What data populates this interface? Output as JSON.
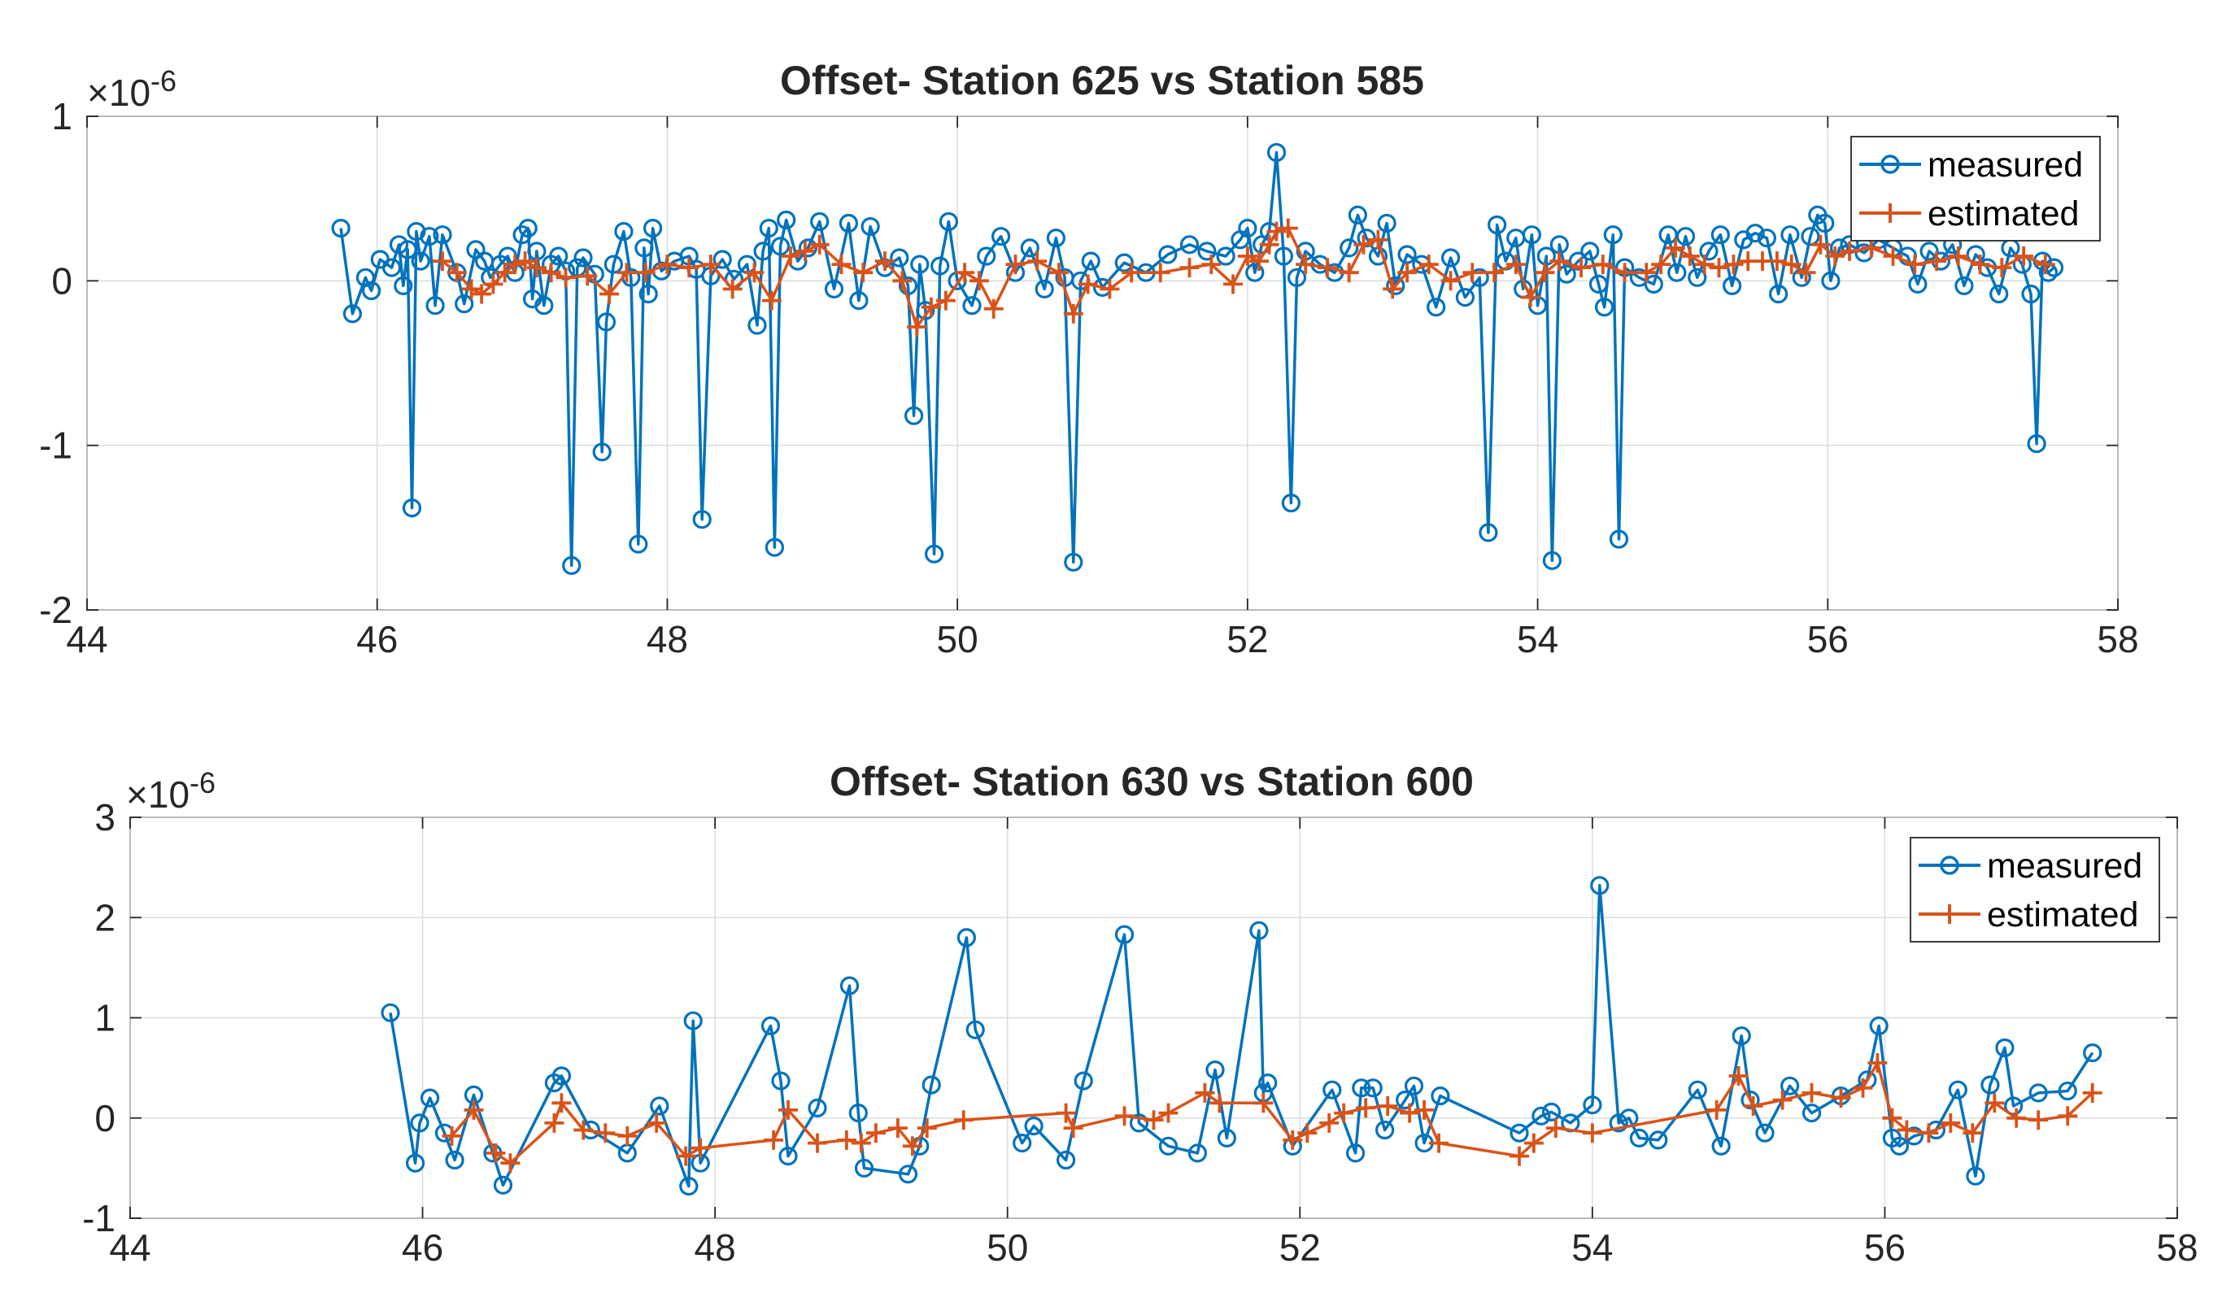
{
  "colors": {
    "measured": "#0072BD",
    "estimated": "#D95319"
  },
  "legend": {
    "placement": "top-right",
    "entries": [
      "measured",
      "estimated"
    ]
  },
  "chart_data": [
    {
      "type": "line",
      "title": "Offset- Station 625 vs Station 585",
      "exponent_label": "×10",
      "exponent_power": "-6",
      "xlim": [
        44,
        58
      ],
      "ylim": [
        -2,
        1
      ],
      "xticks": [
        "44",
        "46",
        "48",
        "50",
        "52",
        "54",
        "56",
        "58"
      ],
      "yticks": [
        "-2",
        "-1",
        "0",
        "1"
      ],
      "grid": true,
      "series": [
        {
          "name": "measured",
          "marker": "circle",
          "x": [
            45.75,
            45.83,
            45.92,
            45.96,
            46.02,
            46.1,
            46.15,
            46.18,
            46.21,
            46.24,
            46.27,
            46.3,
            46.36,
            46.4,
            46.45,
            46.55,
            46.6,
            46.68,
            46.74,
            46.78,
            46.85,
            46.9,
            46.95,
            47.0,
            47.04,
            47.07,
            47.1,
            47.15,
            47.2,
            47.25,
            47.3,
            47.34,
            47.38,
            47.42,
            47.5,
            47.55,
            47.58,
            47.63,
            47.7,
            47.75,
            47.8,
            47.84,
            47.87,
            47.9,
            47.96,
            48.05,
            48.15,
            48.2,
            48.24,
            48.3,
            48.38,
            48.46,
            48.55,
            48.62,
            48.66,
            48.7,
            48.74,
            48.78,
            48.82,
            48.9,
            48.97,
            49.05,
            49.15,
            49.25,
            49.32,
            49.4,
            49.5,
            49.6,
            49.66,
            49.7,
            49.74,
            49.78,
            49.84,
            49.88,
            49.94,
            50.0,
            50.1,
            50.2,
            50.3,
            50.4,
            50.5,
            50.6,
            50.68,
            50.74,
            50.8,
            50.85,
            50.92,
            51.0,
            51.15,
            51.3,
            51.45,
            51.6,
            51.72,
            51.85,
            51.95,
            52.0,
            52.05,
            52.1,
            52.15,
            52.2,
            52.25,
            52.3,
            52.34,
            52.4,
            52.5,
            52.6,
            52.7,
            52.76,
            52.82,
            52.9,
            52.96,
            53.02,
            53.1,
            53.2,
            53.3,
            53.4,
            53.5,
            53.6,
            53.66,
            53.72,
            53.78,
            53.85,
            53.9,
            53.96,
            54.0,
            54.06,
            54.1,
            54.15,
            54.2,
            54.28,
            54.36,
            54.42,
            54.46,
            54.52,
            54.56,
            54.6,
            54.7,
            54.8,
            54.9,
            54.96,
            55.02,
            55.1,
            55.18,
            55.26,
            55.34,
            55.42,
            55.5,
            55.58,
            55.66,
            55.74,
            55.82,
            55.88,
            55.93,
            55.98,
            56.02,
            56.08,
            56.15,
            56.25,
            56.35,
            56.45,
            56.55,
            56.62,
            56.7,
            56.78,
            56.86,
            56.94,
            57.02,
            57.1,
            57.18,
            57.26,
            57.34,
            57.4,
            57.44,
            57.48,
            57.52,
            57.56
          ],
          "y": [
            0.32,
            -0.2,
            0.02,
            -0.06,
            0.13,
            0.08,
            0.22,
            -0.03,
            0.19,
            -1.38,
            0.3,
            0.12,
            0.27,
            -0.15,
            0.28,
            0.05,
            -0.14,
            0.19,
            0.12,
            0.02,
            0.1,
            0.15,
            0.05,
            0.28,
            0.32,
            -0.11,
            0.18,
            -0.15,
            0.1,
            0.15,
            0.06,
            -1.73,
            0.08,
            0.14,
            0.04,
            -1.04,
            -0.25,
            0.1,
            0.3,
            0.02,
            -1.6,
            0.2,
            -0.08,
            0.32,
            0.06,
            0.12,
            0.15,
            0.07,
            -1.45,
            0.03,
            0.13,
            0.01,
            0.1,
            -0.27,
            0.18,
            0.32,
            -1.62,
            0.21,
            0.37,
            0.12,
            0.2,
            0.36,
            -0.05,
            0.35,
            -0.12,
            0.33,
            0.08,
            0.14,
            -0.03,
            -0.82,
            0.1,
            -0.18,
            -1.66,
            0.09,
            0.36,
            0.0,
            -0.15,
            0.15,
            0.27,
            0.05,
            0.2,
            -0.05,
            0.26,
            0.02,
            -1.71,
            0.0,
            0.12,
            -0.04,
            0.11,
            0.05,
            0.16,
            0.22,
            0.18,
            0.15,
            0.25,
            0.32,
            0.05,
            0.22,
            0.3,
            0.78,
            0.15,
            -1.35,
            0.02,
            0.18,
            0.1,
            0.05,
            0.2,
            0.4,
            0.26,
            0.15,
            0.35,
            -0.03,
            0.16,
            0.1,
            -0.16,
            0.14,
            -0.1,
            0.02,
            -1.53,
            0.34,
            0.12,
            0.26,
            -0.05,
            0.28,
            -0.15,
            0.15,
            -1.7,
            0.22,
            0.04,
            0.12,
            0.18,
            -0.02,
            -0.16,
            0.28,
            -1.57,
            0.08,
            0.02,
            -0.02,
            0.28,
            0.05,
            0.27,
            0.02,
            0.18,
            0.28,
            -0.03,
            0.25,
            0.29,
            0.26,
            -0.08,
            0.28,
            0.02,
            0.27,
            0.4,
            0.35,
            0.0,
            0.2,
            0.22,
            0.17,
            0.25,
            0.2,
            0.15,
            -0.02,
            0.18,
            0.12,
            0.22,
            -0.03,
            0.16,
            0.08,
            -0.08,
            0.2,
            0.1,
            -0.08,
            -0.99,
            0.12,
            0.05,
            0.08
          ]
        },
        {
          "name": "estimated",
          "marker": "plus",
          "x": [
            46.45,
            46.55,
            46.65,
            46.72,
            46.8,
            46.88,
            46.95,
            47.02,
            47.1,
            47.2,
            47.3,
            47.45,
            47.6,
            47.72,
            47.85,
            48.0,
            48.15,
            48.3,
            48.45,
            48.6,
            48.72,
            48.85,
            48.95,
            49.05,
            49.2,
            49.35,
            49.5,
            49.62,
            49.72,
            49.82,
            49.92,
            50.05,
            50.15,
            50.25,
            50.4,
            50.55,
            50.7,
            50.8,
            50.9,
            51.05,
            51.2,
            51.4,
            51.6,
            51.75,
            51.9,
            52.0,
            52.08,
            52.15,
            52.2,
            52.28,
            52.4,
            52.55,
            52.7,
            52.8,
            52.9,
            53.0,
            53.1,
            53.25,
            53.4,
            53.55,
            53.7,
            53.85,
            53.95,
            54.05,
            54.15,
            54.3,
            54.45,
            54.6,
            54.75,
            54.85,
            54.95,
            55.05,
            55.15,
            55.25,
            55.35,
            55.45,
            55.55,
            55.65,
            55.75,
            55.85,
            55.95,
            56.05,
            56.15,
            56.3,
            56.45,
            56.6,
            56.75,
            56.9,
            57.05,
            57.2,
            57.35,
            57.5
          ],
          "y": [
            0.12,
            0.05,
            -0.05,
            -0.08,
            -0.02,
            0.05,
            0.1,
            0.12,
            0.08,
            0.05,
            0.02,
            0.03,
            -0.08,
            0.05,
            0.05,
            0.1,
            0.08,
            0.1,
            -0.05,
            0.05,
            -0.12,
            0.15,
            0.18,
            0.22,
            0.1,
            0.05,
            0.12,
            0.0,
            -0.28,
            -0.16,
            -0.12,
            0.05,
            0.0,
            -0.17,
            0.1,
            0.12,
            0.05,
            -0.2,
            -0.02,
            -0.05,
            0.05,
            0.05,
            0.08,
            0.1,
            -0.02,
            0.15,
            0.12,
            0.22,
            0.3,
            0.32,
            0.1,
            0.08,
            0.05,
            0.22,
            0.25,
            -0.05,
            0.05,
            0.1,
            0.0,
            0.05,
            0.05,
            0.1,
            -0.1,
            0.05,
            0.12,
            0.08,
            0.1,
            0.05,
            0.05,
            0.1,
            0.2,
            0.15,
            0.1,
            0.08,
            0.1,
            0.12,
            0.12,
            0.12,
            0.1,
            0.05,
            0.22,
            0.15,
            0.18,
            0.2,
            0.15,
            0.1,
            0.12,
            0.15,
            0.1,
            0.08,
            0.15,
            0.1
          ]
        }
      ]
    },
    {
      "type": "line",
      "title": "Offset- Station 630 vs Station 600",
      "exponent_label": "×10",
      "exponent_power": "-6",
      "xlim": [
        44,
        58
      ],
      "ylim": [
        -1,
        3
      ],
      "xticks": [
        "44",
        "46",
        "48",
        "50",
        "52",
        "54",
        "56",
        "58"
      ],
      "yticks": [
        "-1",
        "0",
        "1",
        "2",
        "3"
      ],
      "grid": true,
      "series": [
        {
          "name": "measured",
          "marker": "circle",
          "x": [
            45.78,
            45.95,
            45.98,
            46.05,
            46.15,
            46.22,
            46.35,
            46.48,
            46.55,
            46.9,
            46.95,
            47.15,
            47.4,
            47.62,
            47.82,
            47.85,
            47.9,
            48.38,
            48.45,
            48.5,
            48.7,
            48.92,
            48.98,
            49.02,
            49.32,
            49.4,
            49.48,
            49.72,
            49.78,
            50.1,
            50.18,
            50.4,
            50.52,
            50.8,
            50.9,
            51.1,
            51.3,
            51.42,
            51.5,
            51.72,
            51.75,
            51.78,
            51.95,
            52.22,
            52.38,
            52.42,
            52.5,
            52.58,
            52.72,
            52.78,
            52.85,
            52.96,
            53.5,
            53.65,
            53.72,
            53.85,
            54.0,
            54.05,
            54.18,
            54.25,
            54.32,
            54.45,
            54.72,
            54.88,
            55.02,
            55.08,
            55.18,
            55.35,
            55.5,
            55.7,
            55.88,
            55.96,
            56.05,
            56.1,
            56.2,
            56.35,
            56.5,
            56.62,
            56.72,
            56.82,
            56.88,
            57.05,
            57.25,
            57.42
          ],
          "y": [
            1.05,
            -0.45,
            -0.05,
            0.2,
            -0.15,
            -0.42,
            0.23,
            -0.35,
            -0.67,
            0.35,
            0.42,
            -0.12,
            -0.35,
            0.12,
            -0.68,
            0.97,
            -0.45,
            0.92,
            0.37,
            -0.38,
            0.1,
            1.32,
            0.05,
            -0.5,
            -0.56,
            -0.28,
            0.33,
            1.8,
            0.88,
            -0.25,
            -0.08,
            -0.42,
            0.37,
            1.83,
            -0.05,
            -0.28,
            -0.35,
            0.48,
            -0.2,
            1.87,
            0.25,
            0.35,
            -0.28,
            0.28,
            -0.35,
            0.3,
            0.3,
            -0.12,
            0.18,
            0.32,
            -0.25,
            0.22,
            -0.15,
            0.02,
            0.06,
            -0.05,
            0.13,
            2.32,
            -0.05,
            0.0,
            -0.2,
            -0.22,
            0.28,
            -0.28,
            0.82,
            0.18,
            -0.15,
            0.32,
            0.05,
            0.22,
            0.38,
            0.92,
            -0.2,
            -0.28,
            -0.18,
            -0.12,
            0.28,
            -0.58,
            0.33,
            0.7,
            0.12,
            0.25,
            0.27,
            0.65
          ]
        },
        {
          "name": "estimated",
          "marker": "plus",
          "x": [
            46.2,
            46.35,
            46.5,
            46.6,
            46.9,
            46.95,
            47.1,
            47.25,
            47.4,
            47.6,
            47.8,
            47.9,
            48.4,
            48.5,
            48.7,
            48.9,
            49.0,
            49.1,
            49.25,
            49.35,
            49.45,
            49.7,
            50.4,
            50.45,
            50.8,
            51.0,
            51.1,
            51.35,
            51.45,
            51.75,
            51.95,
            52.05,
            52.2,
            52.3,
            52.45,
            52.6,
            52.75,
            52.85,
            52.95,
            53.5,
            53.6,
            53.75,
            54.0,
            54.85,
            55.0,
            55.1,
            55.3,
            55.5,
            55.7,
            55.85,
            55.95,
            56.05,
            56.15,
            56.3,
            56.45,
            56.6,
            56.75,
            56.9,
            57.05,
            57.25,
            57.42
          ],
          "y": [
            -0.18,
            0.08,
            -0.35,
            -0.45,
            -0.05,
            0.15,
            -0.12,
            -0.15,
            -0.18,
            -0.05,
            -0.38,
            -0.3,
            -0.22,
            0.08,
            -0.25,
            -0.22,
            -0.25,
            -0.15,
            -0.1,
            -0.28,
            -0.1,
            -0.02,
            0.05,
            -0.1,
            0.02,
            -0.02,
            0.05,
            0.25,
            0.15,
            0.15,
            -0.22,
            -0.15,
            -0.05,
            0.05,
            0.1,
            0.12,
            0.05,
            0.08,
            -0.25,
            -0.38,
            -0.25,
            -0.1,
            -0.15,
            0.08,
            0.42,
            0.12,
            0.18,
            0.25,
            0.2,
            0.3,
            0.55,
            0.0,
            -0.12,
            -0.15,
            -0.05,
            -0.15,
            0.15,
            0.0,
            -0.02,
            0.02,
            0.25
          ]
        }
      ]
    }
  ]
}
